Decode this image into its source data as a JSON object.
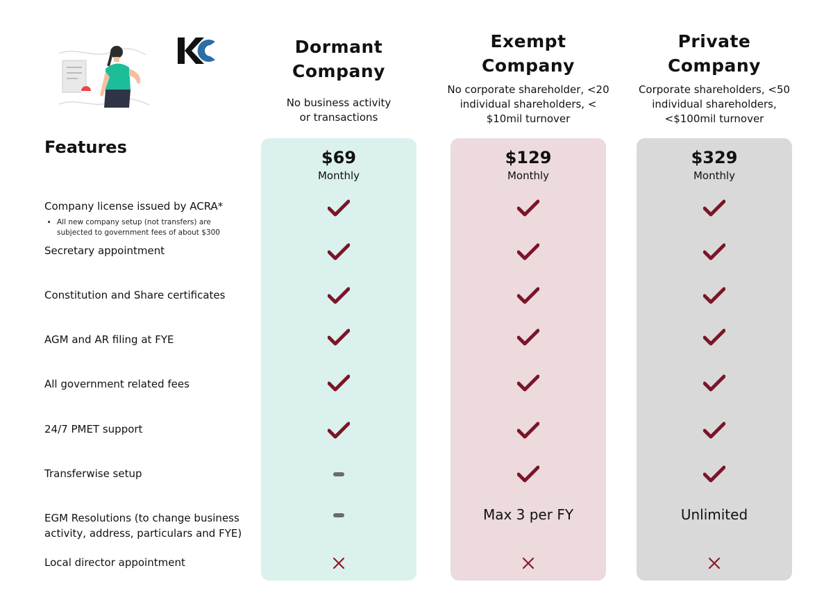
{
  "plans": [
    {
      "name_line1": "Dormant",
      "name_line2": "Company",
      "description": "No business activity\nor  transactions",
      "price": "$69",
      "period": "Monthly"
    },
    {
      "name_line1": "Exempt",
      "name_line2": "Company",
      "description": "No corporate shareholder, <20 individual shareholders, < $10mil turnover",
      "price": "$129",
      "period": "Monthly"
    },
    {
      "name_line1": "Private",
      "name_line2": "Company",
      "description": "Corporate shareholders, <50 individual shareholders, <$100mil turnover",
      "price": "$329",
      "period": "Monthly"
    }
  ],
  "features_title": "Features",
  "features": [
    {
      "label": "Company license issued by ACRA*",
      "note": "All new company setup (not transfers) are subjected to government fees of about $300",
      "values": [
        "check",
        "check",
        "check"
      ]
    },
    {
      "label": "Secretary appointment",
      "values": [
        "check",
        "check",
        "check"
      ]
    },
    {
      "label": "Constitution and Share certificates",
      "values": [
        "check",
        "check",
        "check"
      ]
    },
    {
      "label": "AGM and AR filing at FYE",
      "values": [
        "check",
        "check",
        "check"
      ]
    },
    {
      "label": "All government related fees",
      "values": [
        "check",
        "check",
        "check"
      ]
    },
    {
      "label": "24/7 PMET support",
      "values": [
        "check",
        "check",
        "check"
      ]
    },
    {
      "label": "Transferwise setup",
      "values": [
        "dash",
        "check",
        "check"
      ]
    },
    {
      "label": "EGM Resolutions (to change business activity, address, particulars and FYE)",
      "values": [
        "dash",
        "Max 3 per FY",
        "Unlimited"
      ]
    },
    {
      "label": "Local director appointment",
      "values": [
        "cross",
        "cross",
        "cross"
      ]
    }
  ],
  "colors": {
    "check": "#7a1527",
    "cross": "#8a1a2b",
    "dash": "#6b6b6b",
    "dormant_bg": "#dbf1ee",
    "exempt_bg": "#ecdadd",
    "private_bg": "#d9d9d9",
    "logo_dark": "#111111",
    "logo_blue": "#2b6ea8"
  },
  "icons": {
    "check": "checkmark-icon",
    "cross": "cross-icon",
    "dash": "dash-icon"
  }
}
